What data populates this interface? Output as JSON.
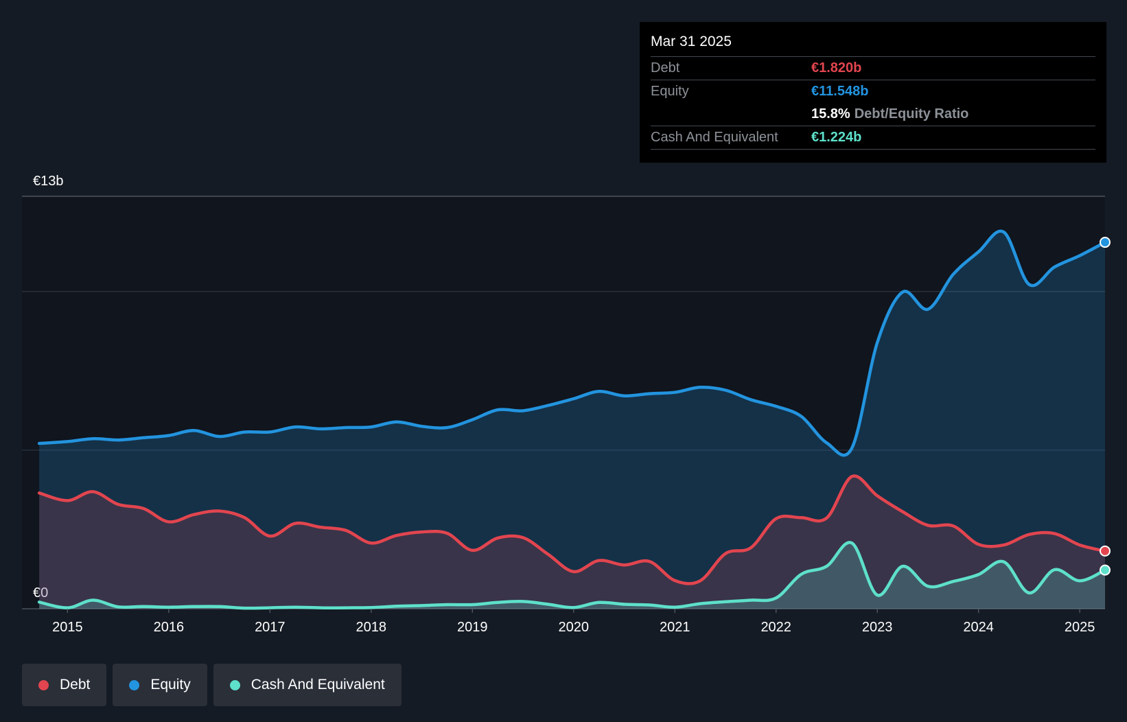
{
  "chart_data": {
    "type": "line",
    "y_unit_labels": {
      "top": "€13b",
      "bottom": "€0"
    },
    "ylim": [
      0,
      13
    ],
    "xlim": [
      2014.55,
      2025.25
    ],
    "x_ticks": [
      2015,
      2016,
      2017,
      2018,
      2019,
      2020,
      2021,
      2022,
      2023,
      2024,
      2025
    ],
    "x_tick_labels": [
      "2015",
      "2016",
      "2017",
      "2018",
      "2019",
      "2020",
      "2021",
      "2022",
      "2023",
      "2024",
      "2025"
    ],
    "gridlines": [
      5,
      10,
      13
    ],
    "series": [
      {
        "name": "Equity",
        "color": "#2394df",
        "fill": "rgba(35,148,223,0.22)",
        "points": [
          [
            2014.72,
            5.21
          ],
          [
            2015.0,
            5.27
          ],
          [
            2015.25,
            5.36
          ],
          [
            2015.5,
            5.32
          ],
          [
            2015.75,
            5.39
          ],
          [
            2016.0,
            5.46
          ],
          [
            2016.25,
            5.62
          ],
          [
            2016.5,
            5.43
          ],
          [
            2016.75,
            5.57
          ],
          [
            2017.0,
            5.57
          ],
          [
            2017.25,
            5.73
          ],
          [
            2017.5,
            5.67
          ],
          [
            2017.75,
            5.71
          ],
          [
            2018.0,
            5.73
          ],
          [
            2018.25,
            5.89
          ],
          [
            2018.5,
            5.75
          ],
          [
            2018.75,
            5.71
          ],
          [
            2019.0,
            5.96
          ],
          [
            2019.25,
            6.27
          ],
          [
            2019.5,
            6.24
          ],
          [
            2019.75,
            6.41
          ],
          [
            2020.0,
            6.62
          ],
          [
            2020.25,
            6.85
          ],
          [
            2020.5,
            6.71
          ],
          [
            2020.75,
            6.78
          ],
          [
            2021.0,
            6.82
          ],
          [
            2021.25,
            6.98
          ],
          [
            2021.5,
            6.89
          ],
          [
            2021.75,
            6.59
          ],
          [
            2022.0,
            6.38
          ],
          [
            2022.25,
            6.06
          ],
          [
            2022.5,
            5.23
          ],
          [
            2022.75,
            5.07
          ],
          [
            2023.0,
            8.39
          ],
          [
            2023.25,
            9.98
          ],
          [
            2023.5,
            9.44
          ],
          [
            2023.75,
            10.54
          ],
          [
            2024.0,
            11.25
          ],
          [
            2024.25,
            11.87
          ],
          [
            2024.5,
            10.22
          ],
          [
            2024.75,
            10.77
          ],
          [
            2025.0,
            11.13
          ],
          [
            2025.25,
            11.55
          ]
        ]
      },
      {
        "name": "Debt",
        "color": "#e2454f",
        "fill": "rgba(226,69,79,0.18)",
        "points": [
          [
            2014.72,
            3.65
          ],
          [
            2015.0,
            3.41
          ],
          [
            2015.25,
            3.69
          ],
          [
            2015.5,
            3.29
          ],
          [
            2015.75,
            3.16
          ],
          [
            2016.0,
            2.74
          ],
          [
            2016.25,
            2.97
          ],
          [
            2016.5,
            3.08
          ],
          [
            2016.75,
            2.87
          ],
          [
            2017.0,
            2.29
          ],
          [
            2017.25,
            2.69
          ],
          [
            2017.5,
            2.57
          ],
          [
            2017.75,
            2.47
          ],
          [
            2018.0,
            2.07
          ],
          [
            2018.25,
            2.31
          ],
          [
            2018.5,
            2.42
          ],
          [
            2018.75,
            2.38
          ],
          [
            2019.0,
            1.84
          ],
          [
            2019.25,
            2.23
          ],
          [
            2019.5,
            2.24
          ],
          [
            2019.75,
            1.71
          ],
          [
            2020.0,
            1.17
          ],
          [
            2020.25,
            1.52
          ],
          [
            2020.5,
            1.38
          ],
          [
            2020.75,
            1.49
          ],
          [
            2021.0,
            0.89
          ],
          [
            2021.25,
            0.88
          ],
          [
            2021.5,
            1.74
          ],
          [
            2021.75,
            1.92
          ],
          [
            2022.0,
            2.84
          ],
          [
            2022.25,
            2.87
          ],
          [
            2022.5,
            2.86
          ],
          [
            2022.75,
            4.17
          ],
          [
            2023.0,
            3.56
          ],
          [
            2023.25,
            3.06
          ],
          [
            2023.5,
            2.63
          ],
          [
            2023.75,
            2.61
          ],
          [
            2024.0,
            2.03
          ],
          [
            2024.25,
            2.01
          ],
          [
            2024.5,
            2.34
          ],
          [
            2024.75,
            2.37
          ],
          [
            2025.0,
            2.01
          ],
          [
            2025.25,
            1.82
          ]
        ]
      },
      {
        "name": "Cash And Equivalent",
        "color": "#5ee0cb",
        "fill": "rgba(94,224,203,0.22)",
        "points": [
          [
            2014.72,
            0.21
          ],
          [
            2015.0,
            0.03
          ],
          [
            2015.25,
            0.27
          ],
          [
            2015.5,
            0.06
          ],
          [
            2015.75,
            0.07
          ],
          [
            2016.0,
            0.05
          ],
          [
            2016.25,
            0.07
          ],
          [
            2016.5,
            0.07
          ],
          [
            2016.75,
            0.02
          ],
          [
            2017.0,
            0.03
          ],
          [
            2017.25,
            0.05
          ],
          [
            2017.5,
            0.03
          ],
          [
            2017.75,
            0.03
          ],
          [
            2018.0,
            0.04
          ],
          [
            2018.25,
            0.08
          ],
          [
            2018.5,
            0.1
          ],
          [
            2018.75,
            0.13
          ],
          [
            2019.0,
            0.13
          ],
          [
            2019.25,
            0.2
          ],
          [
            2019.5,
            0.23
          ],
          [
            2019.75,
            0.14
          ],
          [
            2020.0,
            0.04
          ],
          [
            2020.25,
            0.2
          ],
          [
            2020.5,
            0.14
          ],
          [
            2020.75,
            0.12
          ],
          [
            2021.0,
            0.05
          ],
          [
            2021.25,
            0.16
          ],
          [
            2021.5,
            0.22
          ],
          [
            2021.75,
            0.27
          ],
          [
            2022.0,
            0.34
          ],
          [
            2022.25,
            1.09
          ],
          [
            2022.5,
            1.34
          ],
          [
            2022.75,
            2.07
          ],
          [
            2023.0,
            0.43
          ],
          [
            2023.25,
            1.34
          ],
          [
            2023.5,
            0.71
          ],
          [
            2023.75,
            0.86
          ],
          [
            2024.0,
            1.08
          ],
          [
            2024.25,
            1.48
          ],
          [
            2024.5,
            0.5
          ],
          [
            2024.75,
            1.23
          ],
          [
            2025.0,
            0.88
          ],
          [
            2025.25,
            1.22
          ]
        ]
      }
    ]
  },
  "tooltip": {
    "date": "Mar 31 2025",
    "debt_label": "Debt",
    "debt_value": "€1.820b",
    "equity_label": "Equity",
    "equity_value": "€11.548b",
    "ratio_value": "15.8%",
    "ratio_label": "Debt/Equity Ratio",
    "cash_label": "Cash And Equivalent",
    "cash_value": "€1.224b"
  },
  "legend": {
    "items": [
      {
        "label": "Debt",
        "color": "#e2454f"
      },
      {
        "label": "Equity",
        "color": "#2394df"
      },
      {
        "label": "Cash And Equivalent",
        "color": "#5ee0cb"
      }
    ]
  },
  "colors": {
    "background": "#151b24",
    "plot_background": "#10151e",
    "grid": "#2c333d",
    "axis": "#555c66"
  }
}
